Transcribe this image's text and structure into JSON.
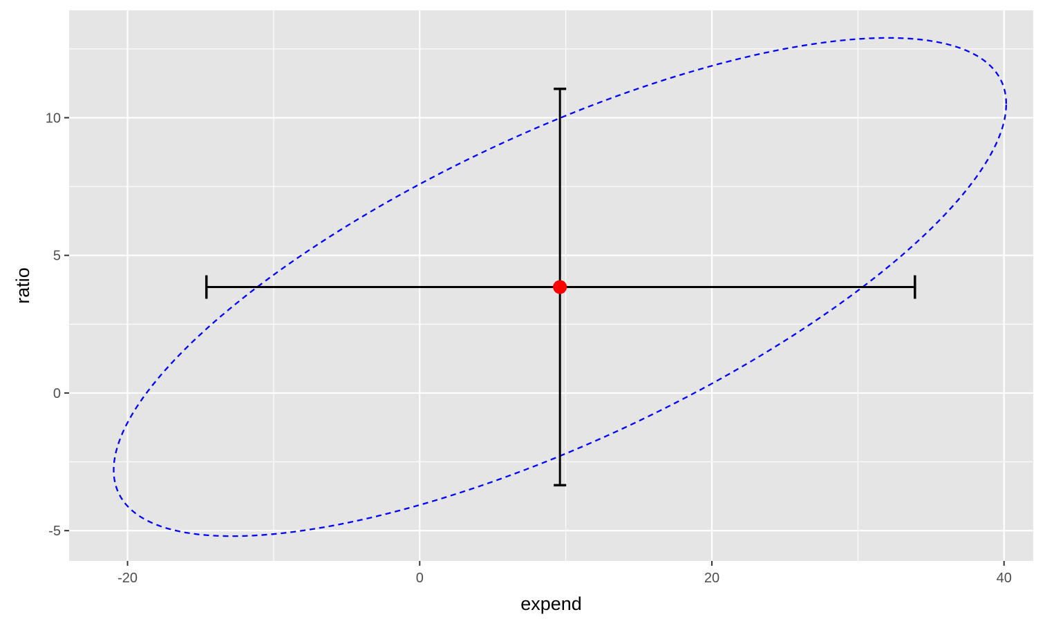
{
  "chart_data": {
    "type": "scatter",
    "title": "",
    "xlabel": "expend",
    "ylabel": "ratio",
    "xlim": [
      -24,
      42
    ],
    "ylim": [
      -6.1,
      13.9
    ],
    "x_ticks": [
      -20,
      0,
      20,
      40
    ],
    "y_ticks": [
      -5,
      0,
      5,
      10
    ],
    "x_tick_labels": [
      "-20",
      "0",
      "20",
      "40"
    ],
    "y_tick_labels": [
      "-5",
      "0",
      "5",
      "10"
    ],
    "x_minor_ticks": [
      -10,
      10,
      30
    ],
    "y_minor_ticks": [
      -2.5,
      2.5,
      7.5,
      12.5
    ],
    "grid": true,
    "point": {
      "x": 9.6,
      "y": 3.85
    },
    "x_errorbar": {
      "y": 3.85,
      "xmin": -14.6,
      "xmax": 33.9
    },
    "y_errorbar": {
      "x": 9.6,
      "ymin": -3.35,
      "ymax": 11.05
    },
    "ellipse": {
      "center": [
        9.6,
        3.85
      ],
      "style": "dashed",
      "x_extent": [
        -21.0,
        40.1
      ],
      "y_extent": [
        -5.2,
        12.9
      ],
      "y_at_xmin": -2.8,
      "x_at_ymax": 32.8
    },
    "colors": {
      "panel_background": "#e5e5e5",
      "grid": "#ffffff",
      "point": "#ff0000",
      "errorbar": "#000000",
      "ellipse": "#0000ff"
    }
  }
}
